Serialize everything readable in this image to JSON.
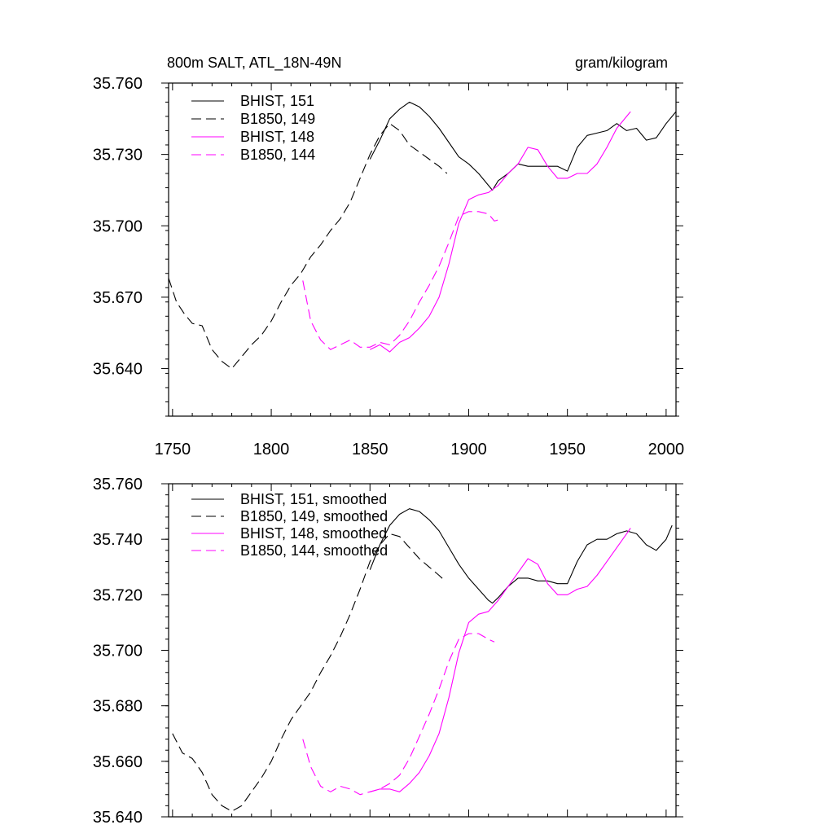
{
  "chart_data": [
    {
      "type": "line",
      "title": "800m SALT, ATL_18N-49N",
      "units": "gram/kilogram",
      "xlabel": "",
      "ylabel": "",
      "xlim": [
        1748,
        2005
      ],
      "ylim": [
        35.62,
        35.76
      ],
      "x_ticks": [
        1750,
        1800,
        1850,
        1900,
        1950,
        2000
      ],
      "x_tick_labels": [
        "1750",
        "1800",
        "1850",
        "1900",
        "1950",
        "2000"
      ],
      "y_ticks": [
        35.64,
        35.67,
        35.7,
        35.73,
        35.76
      ],
      "y_tick_labels": [
        "35.640",
        "35.670",
        "35.700",
        "35.730",
        "35.760"
      ],
      "legend_position": "top-left",
      "series": [
        {
          "name": "BHIST, 151",
          "color": "#000000",
          "dash": "solid",
          "x": [
            1850,
            1855,
            1860,
            1865,
            1870,
            1875,
            1880,
            1885,
            1890,
            1895,
            1900,
            1905,
            1910,
            1912,
            1915,
            1920,
            1925,
            1930,
            1935,
            1940,
            1945,
            1950,
            1955,
            1960,
            1965,
            1970,
            1975,
            1980,
            1985,
            1990,
            1995,
            2000,
            2005
          ],
          "y": [
            35.728,
            35.736,
            35.745,
            35.749,
            35.752,
            35.75,
            35.746,
            35.741,
            35.735,
            35.729,
            35.726,
            35.722,
            35.717,
            35.715,
            35.719,
            35.722,
            35.726,
            35.725,
            35.725,
            35.725,
            35.725,
            35.723,
            35.733,
            35.738,
            35.739,
            35.74,
            35.743,
            35.74,
            35.741,
            35.736,
            35.737,
            35.743,
            35.748
          ]
        },
        {
          "name": "B1850, 149",
          "color": "#000000",
          "dash": "dashed",
          "x": [
            1748,
            1752,
            1756,
            1760,
            1765,
            1770,
            1775,
            1780,
            1785,
            1790,
            1795,
            1800,
            1805,
            1810,
            1815,
            1820,
            1825,
            1830,
            1835,
            1840,
            1845,
            1850,
            1855,
            1860,
            1865,
            1870,
            1875,
            1880,
            1885,
            1889
          ],
          "y": [
            35.678,
            35.668,
            35.663,
            35.659,
            35.658,
            35.648,
            35.643,
            35.64,
            35.645,
            35.65,
            35.654,
            35.66,
            35.668,
            35.675,
            35.68,
            35.687,
            35.692,
            35.698,
            35.703,
            35.71,
            35.72,
            35.73,
            35.738,
            35.743,
            35.74,
            35.734,
            35.731,
            35.728,
            35.725,
            35.722
          ]
        },
        {
          "name": "BHIST, 148",
          "color": "#ff00ff",
          "dash": "solid",
          "x": [
            1850,
            1855,
            1860,
            1865,
            1870,
            1875,
            1880,
            1885,
            1890,
            1895,
            1900,
            1905,
            1910,
            1915,
            1920,
            1925,
            1930,
            1935,
            1940,
            1945,
            1950,
            1955,
            1960,
            1965,
            1970,
            1975,
            1980,
            1982
          ],
          "y": [
            35.648,
            35.65,
            35.647,
            35.651,
            35.653,
            35.657,
            35.662,
            35.67,
            35.684,
            35.701,
            35.711,
            35.713,
            35.714,
            35.717,
            35.722,
            35.726,
            35.733,
            35.732,
            35.725,
            35.72,
            35.72,
            35.722,
            35.722,
            35.726,
            35.733,
            35.741,
            35.746,
            35.748
          ]
        },
        {
          "name": "B1850, 144",
          "color": "#ff00ff",
          "dash": "dashed",
          "x": [
            1816,
            1820,
            1825,
            1830,
            1835,
            1840,
            1845,
            1850,
            1855,
            1860,
            1865,
            1870,
            1875,
            1880,
            1885,
            1890,
            1895,
            1900,
            1905,
            1910,
            1913,
            1917
          ],
          "y": [
            35.677,
            35.66,
            35.652,
            35.648,
            35.65,
            35.652,
            35.649,
            35.649,
            35.651,
            35.65,
            35.654,
            35.66,
            35.668,
            35.675,
            35.683,
            35.693,
            35.704,
            35.706,
            35.706,
            35.705,
            35.702,
            35.703
          ]
        }
      ]
    },
    {
      "type": "line",
      "title": "",
      "xlabel": "",
      "ylabel": "",
      "xlim": [
        1748,
        2005
      ],
      "ylim": [
        35.64,
        35.76
      ],
      "x_ticks": [
        1750,
        1800,
        1850,
        1900,
        1950,
        2000
      ],
      "y_ticks": [
        35.64,
        35.66,
        35.68,
        35.7,
        35.72,
        35.74,
        35.76
      ],
      "y_tick_labels": [
        "35.640",
        "35.660",
        "35.680",
        "35.700",
        "35.720",
        "35.740",
        "35.760"
      ],
      "legend_position": "top-left",
      "series": [
        {
          "name": "BHIST, 151, smoothed",
          "color": "#000000",
          "dash": "solid",
          "x": [
            1850,
            1855,
            1860,
            1865,
            1870,
            1875,
            1880,
            1885,
            1890,
            1895,
            1900,
            1905,
            1910,
            1912,
            1915,
            1920,
            1925,
            1930,
            1935,
            1940,
            1945,
            1950,
            1955,
            1960,
            1965,
            1970,
            1975,
            1980,
            1985,
            1990,
            1995,
            2000,
            2003
          ],
          "y": [
            35.729,
            35.738,
            35.745,
            35.749,
            35.751,
            35.75,
            35.747,
            35.743,
            35.737,
            35.731,
            35.726,
            35.722,
            35.718,
            35.717,
            35.719,
            35.723,
            35.726,
            35.726,
            35.725,
            35.725,
            35.724,
            35.724,
            35.732,
            35.738,
            35.74,
            35.74,
            35.742,
            35.743,
            35.742,
            35.738,
            35.736,
            35.74,
            35.745
          ]
        },
        {
          "name": "B1850, 149, smoothed",
          "color": "#000000",
          "dash": "dashed",
          "x": [
            1750,
            1755,
            1760,
            1765,
            1770,
            1775,
            1780,
            1785,
            1790,
            1795,
            1800,
            1805,
            1810,
            1815,
            1820,
            1825,
            1830,
            1835,
            1840,
            1845,
            1850,
            1855,
            1860,
            1865,
            1870,
            1875,
            1880,
            1885,
            1888
          ],
          "y": [
            35.67,
            35.663,
            35.661,
            35.656,
            35.648,
            35.644,
            35.642,
            35.644,
            35.649,
            35.654,
            35.66,
            35.668,
            35.675,
            35.68,
            35.685,
            35.692,
            35.698,
            35.705,
            35.713,
            35.722,
            35.732,
            35.738,
            35.742,
            35.741,
            35.737,
            35.733,
            35.73,
            35.727,
            35.725
          ]
        },
        {
          "name": "BHIST, 148, smoothed",
          "color": "#ff00ff",
          "dash": "solid",
          "x": [
            1850,
            1855,
            1860,
            1865,
            1870,
            1875,
            1880,
            1885,
            1890,
            1895,
            1900,
            1905,
            1910,
            1915,
            1920,
            1925,
            1930,
            1935,
            1940,
            1945,
            1950,
            1955,
            1960,
            1965,
            1970,
            1975,
            1980,
            1982
          ],
          "y": [
            35.649,
            35.65,
            35.65,
            35.649,
            35.652,
            35.656,
            35.662,
            35.67,
            35.683,
            35.699,
            35.71,
            35.713,
            35.714,
            35.718,
            35.723,
            35.728,
            35.733,
            35.731,
            35.724,
            35.72,
            35.72,
            35.722,
            35.723,
            35.727,
            35.732,
            35.737,
            35.742,
            35.744
          ]
        },
        {
          "name": "B1850, 144, smoothed",
          "color": "#ff00ff",
          "dash": "dashed",
          "x": [
            1816,
            1820,
            1825,
            1830,
            1835,
            1840,
            1845,
            1850,
            1855,
            1860,
            1865,
            1870,
            1875,
            1880,
            1885,
            1890,
            1895,
            1900,
            1905,
            1910,
            1913
          ],
          "y": [
            35.668,
            35.658,
            35.651,
            35.649,
            35.651,
            35.65,
            35.648,
            35.649,
            35.65,
            35.652,
            35.655,
            35.661,
            35.669,
            35.677,
            35.686,
            35.696,
            35.704,
            35.706,
            35.706,
            35.704,
            35.703
          ]
        }
      ]
    }
  ]
}
